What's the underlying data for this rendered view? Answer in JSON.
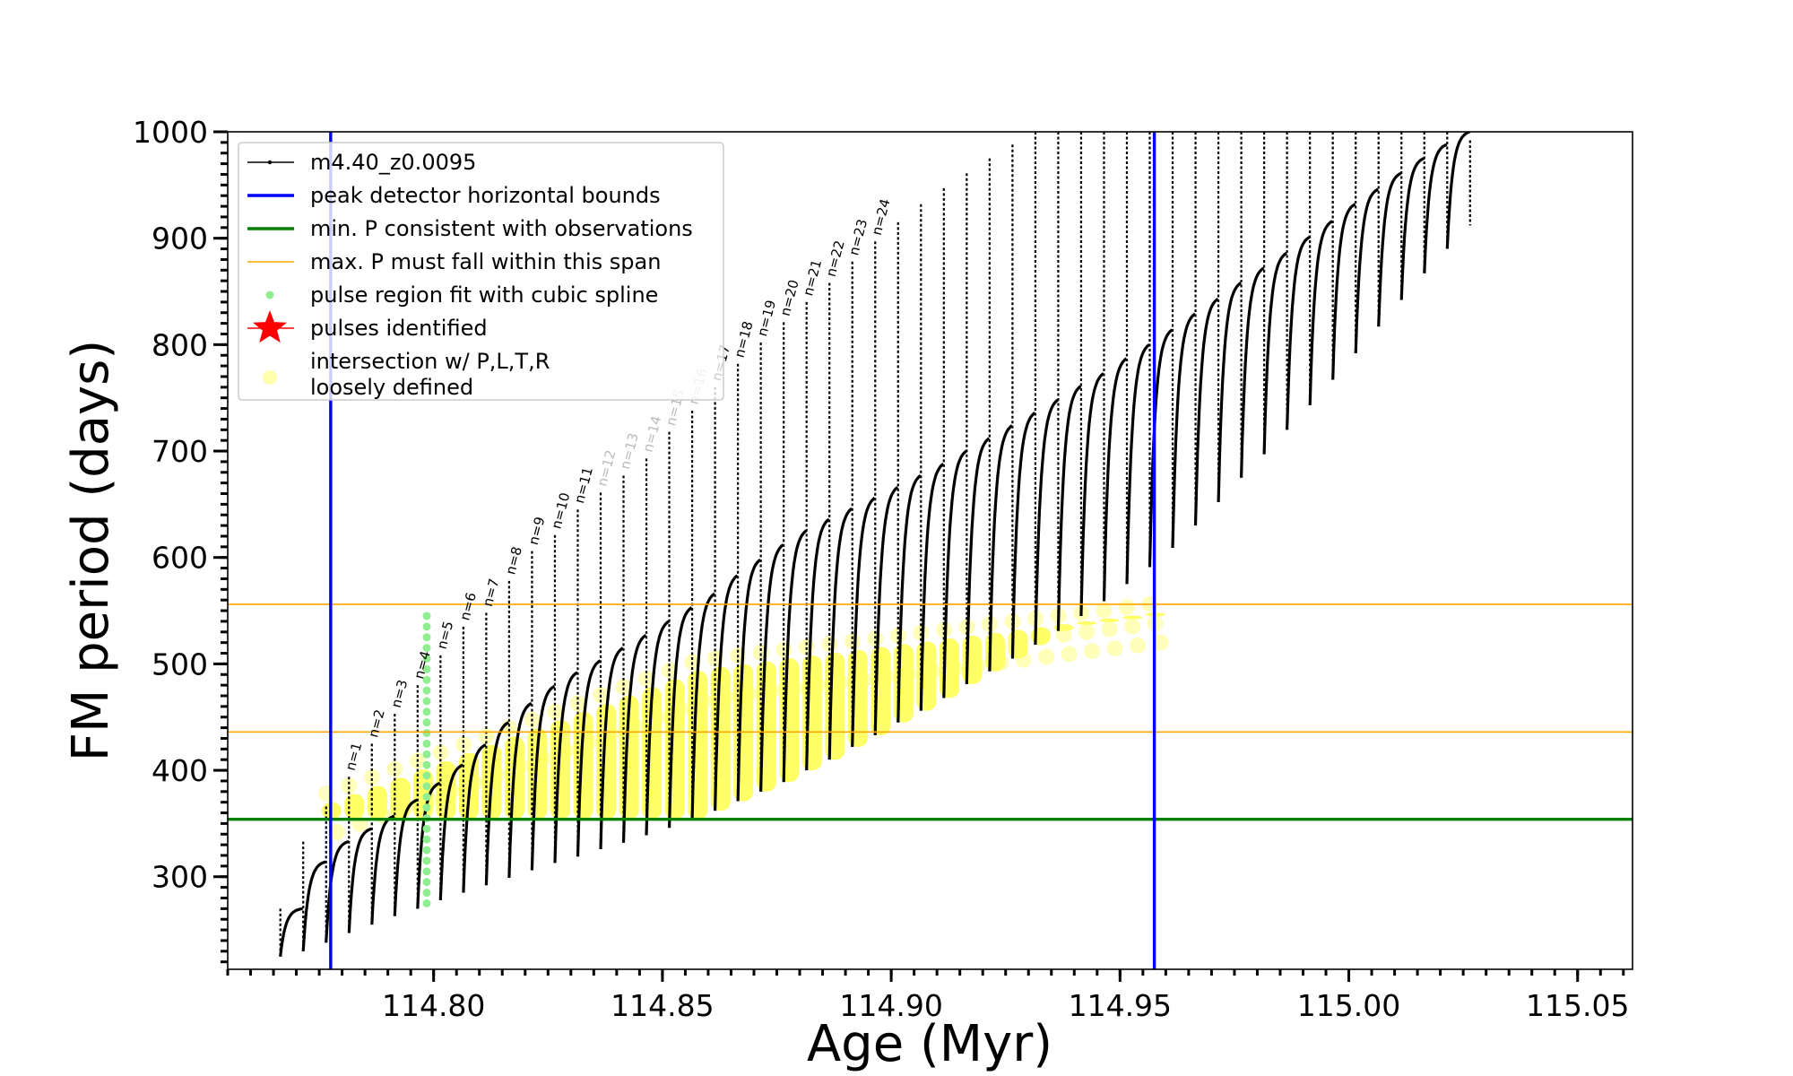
{
  "chart_data": {
    "type": "line",
    "xlabel": "Age (Myr)",
    "ylabel": "FM period (days)",
    "xlim": [
      114.755,
      115.062
    ],
    "ylim": [
      213,
      1000
    ],
    "xticks": [
      "114.80",
      "114.85",
      "114.90",
      "114.95",
      "115.00",
      "115.05"
    ],
    "xtick_values": [
      114.8,
      114.85,
      114.9,
      114.95,
      115.0,
      115.05
    ],
    "yticks": [
      "300",
      "400",
      "500",
      "600",
      "700",
      "800",
      "900",
      "1000"
    ],
    "ytick_values": [
      300,
      400,
      500,
      600,
      700,
      800,
      900,
      1000
    ],
    "minor_x_step": 0.005,
    "minor_y_step": 10,
    "grid": false,
    "legend_position": "top-left",
    "legend": [
      {
        "label": "m4.40_z0.0095",
        "marker": "line-dot",
        "color": "#000000"
      },
      {
        "label": "peak detector horizontal bounds",
        "marker": "line",
        "color": "#0000ff"
      },
      {
        "label": "min. P consistent with observations",
        "marker": "line",
        "color": "#008000"
      },
      {
        "label": "max. P must fall within this span",
        "marker": "thin-line",
        "color": "#ffa500"
      },
      {
        "label": "pulse region fit with cubic spline",
        "marker": "dot",
        "color": "#90ee90"
      },
      {
        "label": "pulses identified",
        "marker": "star",
        "color": "#ff0000"
      },
      {
        "label": "intersection w/ P,L,T,R",
        "label_line2": "loosely defined",
        "marker": "circle",
        "color": "#ffff99"
      }
    ],
    "reference_lines": {
      "peak_detector_bounds_x": [
        114.7775,
        114.9575
      ],
      "min_period": 354,
      "max_period_span": [
        436,
        556
      ]
    },
    "series": [
      {
        "name": "m4.40_z0.0095",
        "color": "#000000",
        "pulse_ages": [
          114.7665,
          114.7715,
          114.7765,
          114.7815,
          114.7865,
          114.7915,
          114.7965,
          114.8015,
          114.8065,
          114.8115,
          114.8165,
          114.8215,
          114.8265,
          114.8315,
          114.8365,
          114.8415,
          114.8465,
          114.8515,
          114.8565,
          114.8615,
          114.8665,
          114.8715,
          114.8765,
          114.8815,
          114.8865,
          114.8915,
          114.8965,
          114.9015,
          114.9065,
          114.9115,
          114.9165,
          114.9215,
          114.9265,
          114.9315,
          114.9365,
          114.9415,
          114.9465,
          114.9515,
          114.9565,
          114.9615,
          114.9665,
          114.9715,
          114.9765,
          114.9815,
          114.9865,
          114.9915,
          114.9965,
          115.0015,
          115.0065,
          115.0115,
          115.0165,
          115.0215,
          115.0265
        ],
        "min_period": [
          225,
          230,
          238,
          247,
          255,
          263,
          270,
          278,
          285,
          292,
          299,
          306,
          313,
          319,
          326,
          332,
          339,
          346,
          354,
          362,
          371,
          380,
          389,
          400,
          410,
          422,
          433,
          445,
          456,
          468,
          481,
          493,
          505,
          518,
          531,
          545,
          559,
          575,
          591,
          609,
          630,
          652,
          675,
          697,
          720,
          743,
          767,
          792,
          817,
          842,
          867,
          890,
          912
        ],
        "peak_period": [
          270,
          333,
          366,
          394,
          425,
          453,
          480,
          508,
          535,
          548,
          578,
          606,
          621,
          645,
          661,
          677,
          693,
          718,
          738,
          760,
          782,
          802,
          821,
          840,
          858,
          878,
          897,
          915,
          932,
          947,
          961,
          975,
          988,
          1000,
          1000,
          1000,
          1000,
          1000,
          1000,
          1000,
          1000,
          1000,
          1000,
          1000,
          1000,
          1000,
          1000,
          1000,
          1000,
          1000,
          1000,
          1000,
          992
        ],
        "envelope_max": [
          270,
          314,
          333,
          345,
          357,
          372,
          388,
          405,
          424,
          445,
          463,
          479,
          492,
          503,
          515,
          527,
          540,
          553,
          566,
          583,
          598,
          612,
          625,
          636,
          646,
          656,
          666,
          677,
          688,
          700,
          712,
          724,
          736,
          748,
          761,
          773,
          787,
          800,
          814,
          829,
          843,
          858,
          872,
          886,
          901,
          916,
          932,
          946,
          961,
          975,
          988,
          1000,
          1000
        ]
      }
    ],
    "pulse_labels": [
      {
        "text": "n=1",
        "style": "normal"
      },
      {
        "text": "n=2",
        "style": "normal"
      },
      {
        "text": "n=3",
        "style": "normal"
      },
      {
        "text": "n=4",
        "style": "normal"
      },
      {
        "text": "n=5",
        "style": "normal"
      },
      {
        "text": "n=6",
        "style": "normal"
      },
      {
        "text": "n=7",
        "style": "normal"
      },
      {
        "text": "n=8",
        "style": "normal"
      },
      {
        "text": "n=9",
        "style": "normal"
      },
      {
        "text": "n=10",
        "style": "normal"
      },
      {
        "text": "n=11",
        "style": "normal"
      },
      {
        "text": "n=12",
        "style": "faded"
      },
      {
        "text": "n=13",
        "style": "faded"
      },
      {
        "text": "n=14",
        "style": "faded"
      },
      {
        "text": "n=15",
        "style": "faded"
      },
      {
        "text": "n=16",
        "style": "faded"
      },
      {
        "text": "n=17",
        "style": "normal"
      },
      {
        "text": "n=18",
        "style": "normal"
      },
      {
        "text": "n=19",
        "style": "normal"
      },
      {
        "text": "n=20",
        "style": "normal"
      },
      {
        "text": "n=21",
        "style": "normal"
      },
      {
        "text": "n=22",
        "style": "normal"
      },
      {
        "text": "n=23",
        "style": "normal"
      },
      {
        "text": "n=24",
        "style": "normal"
      }
    ],
    "spline_fit_pulse": {
      "age": 114.7985,
      "period_range": [
        275,
        545
      ]
    },
    "intersection_region": {
      "age_range": [
        114.7765,
        114.9565
      ],
      "period_lower": 354,
      "period_upper_left": 370,
      "period_upper_mid": 495,
      "period_upper_right": 548
    }
  }
}
